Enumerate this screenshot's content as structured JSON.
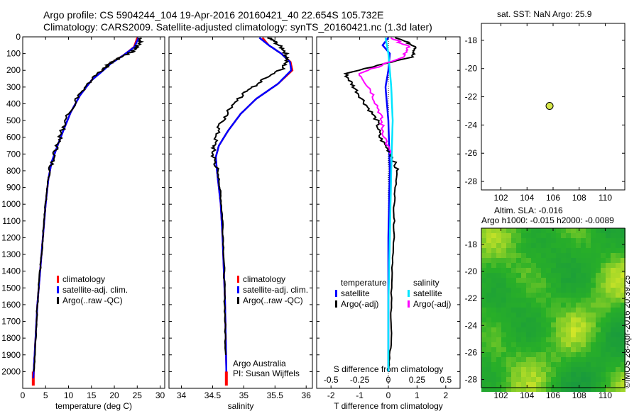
{
  "header": {
    "title_line1": "Argo profile: CS 5904244_104 19-Apr-2016 20160421_40 22.654S 105.732E",
    "title_line2": "Climatology: CARS2009. Satellite-adjusted climatology: synTS_20160421.nc (1.3d later)"
  },
  "colors": {
    "climatology": "#ff0000",
    "satellite_adj": "#0000ff",
    "argo": "#000000",
    "salinity_satellite": "#00e5ff",
    "salinity_argo": "#ff00ff",
    "sst_dot": "#d8e84a"
  },
  "chart_data": [
    {
      "type": "line",
      "name": "temperature-profile",
      "xlabel": "temperature (deg C)",
      "ylabel": "",
      "xlim": [
        0,
        31
      ],
      "ylim": [
        2100,
        0
      ],
      "xticks": [
        0,
        5,
        10,
        15,
        20,
        25,
        30
      ],
      "yticks": [
        0,
        100,
        200,
        300,
        400,
        500,
        600,
        700,
        800,
        900,
        1000,
        1100,
        1200,
        1300,
        1400,
        1500,
        1600,
        1700,
        1800,
        1900,
        2000
      ],
      "legend": [
        "climatology",
        "satellite-adj. clim.",
        "Argo(..raw -QC)"
      ],
      "legend_position": "lower-center",
      "series": [
        {
          "name": "climatology",
          "points": [
            [
              25.0,
              5
            ],
            [
              24.3,
              60
            ],
            [
              22.0,
              110
            ],
            [
              19.0,
              160
            ],
            [
              17.5,
              200
            ],
            [
              15.0,
              260
            ],
            [
              12.5,
              350
            ],
            [
              10.5,
              450
            ],
            [
              9.0,
              550
            ],
            [
              7.6,
              650
            ],
            [
              6.3,
              750
            ],
            [
              5.6,
              850
            ],
            [
              5.0,
              1000
            ],
            [
              4.4,
              1200
            ],
            [
              3.8,
              1400
            ],
            [
              3.2,
              1600
            ],
            [
              2.8,
              1800
            ],
            [
              2.4,
              2000
            ],
            [
              2.3,
              2050
            ]
          ]
        },
        {
          "name": "satellite-adj. clim.",
          "points": [
            [
              25.3,
              5
            ],
            [
              24.4,
              60
            ],
            [
              22.0,
              110
            ],
            [
              19.2,
              160
            ],
            [
              17.6,
              200
            ],
            [
              15.0,
              260
            ],
            [
              12.5,
              350
            ],
            [
              10.5,
              450
            ],
            [
              9.0,
              550
            ],
            [
              7.6,
              650
            ],
            [
              6.3,
              750
            ],
            [
              5.6,
              850
            ],
            [
              5.0,
              1000
            ],
            [
              4.4,
              1200
            ],
            [
              3.8,
              1400
            ],
            [
              3.2,
              1600
            ],
            [
              2.8,
              1800
            ],
            [
              2.4,
              2000
            ],
            [
              2.3,
              2040
            ]
          ]
        },
        {
          "name": "Argo(..raw -QC)",
          "points": [
            [
              25.8,
              5
            ],
            [
              25.5,
              40
            ],
            [
              24.5,
              80
            ],
            [
              21.5,
              120
            ],
            [
              19.0,
              160
            ],
            [
              17.3,
              200
            ],
            [
              14.5,
              270
            ],
            [
              12.0,
              360
            ],
            [
              10.0,
              460
            ],
            [
              8.6,
              560
            ],
            [
              7.5,
              650
            ],
            [
              6.4,
              750
            ],
            [
              5.6,
              850
            ],
            [
              5.0,
              1000
            ],
            [
              4.4,
              1200
            ],
            [
              3.8,
              1400
            ],
            [
              3.2,
              1600
            ],
            [
              2.8,
              1800
            ],
            [
              2.4,
              2000
            ]
          ]
        }
      ]
    },
    {
      "type": "line",
      "name": "salinity-profile",
      "xlabel": "salinity",
      "ylabel": "",
      "xlim": [
        33.8,
        36.1
      ],
      "ylim": [
        2100,
        0
      ],
      "xticks": [
        34,
        34.5,
        35,
        35.5,
        36
      ],
      "legend": [
        "climatology",
        "satellite-adj. clim.",
        "Argo(..raw -QC)"
      ],
      "legend_position": "lower-center",
      "annotation": [
        "Argo Australia",
        "PI: Susan Wijffels"
      ],
      "series": [
        {
          "name": "climatology",
          "points": [
            [
              35.3,
              5
            ],
            [
              35.4,
              50
            ],
            [
              35.6,
              100
            ],
            [
              35.75,
              150
            ],
            [
              35.78,
              200
            ],
            [
              35.55,
              280
            ],
            [
              35.2,
              370
            ],
            [
              34.95,
              460
            ],
            [
              34.75,
              560
            ],
            [
              34.6,
              650
            ],
            [
              34.55,
              720
            ],
            [
              34.57,
              800
            ],
            [
              34.6,
              900
            ],
            [
              34.63,
              1000
            ],
            [
              34.66,
              1200
            ],
            [
              34.68,
              1400
            ],
            [
              34.7,
              1600
            ],
            [
              34.71,
              1800
            ],
            [
              34.72,
              2000
            ],
            [
              34.72,
              2050
            ]
          ]
        },
        {
          "name": "satellite-adj. clim.",
          "points": [
            [
              35.25,
              5
            ],
            [
              35.4,
              50
            ],
            [
              35.6,
              100
            ],
            [
              35.74,
              150
            ],
            [
              35.76,
              200
            ],
            [
              35.55,
              280
            ],
            [
              35.2,
              370
            ],
            [
              34.95,
              460
            ],
            [
              34.75,
              560
            ],
            [
              34.6,
              650
            ],
            [
              34.55,
              720
            ],
            [
              34.57,
              800
            ],
            [
              34.6,
              900
            ],
            [
              34.63,
              1000
            ],
            [
              34.66,
              1200
            ],
            [
              34.68,
              1400
            ],
            [
              34.7,
              1600
            ],
            [
              34.71,
              1800
            ],
            [
              34.72,
              2000
            ]
          ]
        },
        {
          "name": "Argo(..raw -QC)",
          "points": [
            [
              35.4,
              5
            ],
            [
              35.5,
              30
            ],
            [
              35.65,
              80
            ],
            [
              35.7,
              130
            ],
            [
              35.62,
              190
            ],
            [
              35.3,
              260
            ],
            [
              35.0,
              340
            ],
            [
              34.75,
              440
            ],
            [
              34.6,
              540
            ],
            [
              34.53,
              640
            ],
            [
              34.5,
              700
            ],
            [
              34.55,
              760
            ],
            [
              34.6,
              850
            ],
            [
              34.63,
              950
            ],
            [
              34.66,
              1100
            ],
            [
              34.68,
              1300
            ],
            [
              34.69,
              1500
            ],
            [
              34.7,
              1700
            ],
            [
              34.71,
              1900
            ]
          ]
        }
      ]
    },
    {
      "type": "line",
      "name": "difference-from-climatology",
      "xlabel": "T difference from climatology",
      "xlabel2": "S difference from climatology",
      "xlim": [
        -2.5,
        2.5
      ],
      "ylim": [
        2100,
        0
      ],
      "xticks": [
        -2,
        -1,
        0,
        1,
        2
      ],
      "x2ticks": [
        "-0.5",
        "-0.25",
        "0",
        "0.25",
        "0.5"
      ],
      "legend_groups": [
        "temperature",
        "salinity"
      ],
      "legend": [
        "satellite",
        "Argo(-adj)",
        "satellite",
        "Argo(-adj)"
      ],
      "legend_position": "lower-center",
      "series": [
        {
          "name": "satellite",
          "group": "temperature",
          "points": [
            [
              0.0,
              5
            ],
            [
              -0.2,
              50
            ],
            [
              0.05,
              100
            ],
            [
              0.0,
              200
            ],
            [
              -0.1,
              300
            ],
            [
              0.0,
              500
            ],
            [
              0.05,
              800
            ],
            [
              0.0,
              1200
            ],
            [
              0.0,
              2000
            ]
          ]
        },
        {
          "name": "Argo(-adj)",
          "group": "temperature",
          "points": [
            [
              0.3,
              5
            ],
            [
              1.0,
              60
            ],
            [
              0.8,
              120
            ],
            [
              -1.5,
              220
            ],
            [
              -1.2,
              300
            ],
            [
              -0.8,
              400
            ],
            [
              -0.4,
              500
            ],
            [
              -0.3,
              600
            ],
            [
              0.1,
              700
            ],
            [
              0.3,
              800
            ],
            [
              0.2,
              1000
            ],
            [
              0.2,
              1200
            ],
            [
              0.1,
              1500
            ],
            [
              0.1,
              1800
            ],
            [
              0.0,
              2000
            ]
          ]
        },
        {
          "name": "satellite",
          "group": "salinity",
          "points": [
            [
              -0.1,
              5
            ],
            [
              0.0,
              100
            ],
            [
              0.1,
              300
            ],
            [
              0.15,
              500
            ],
            [
              0.1,
              800
            ],
            [
              0.05,
              1200
            ],
            [
              0.0,
              1600
            ],
            [
              0.0,
              2000
            ]
          ]
        },
        {
          "name": "Argo(-adj)",
          "group": "salinity",
          "points": [
            [
              0.1,
              5
            ],
            [
              0.7,
              60
            ],
            [
              0.5,
              120
            ],
            [
              -1.0,
              220
            ],
            [
              -0.6,
              320
            ],
            [
              -0.3,
              450
            ],
            [
              -0.2,
              550
            ],
            [
              0.05,
              700
            ]
          ]
        }
      ]
    },
    {
      "type": "scatter",
      "name": "sst-location-map",
      "title": "sat. SST: NaN Argo: 25.9",
      "xlim": [
        100.5,
        111.5
      ],
      "ylim": [
        -28.6,
        -16.8
      ],
      "xticks": [
        102,
        104,
        106,
        108,
        110
      ],
      "yticks": [
        -18,
        -20,
        -22,
        -24,
        -26,
        -28
      ],
      "points": [
        [
          105.73,
          -22.65
        ]
      ]
    },
    {
      "type": "heatmap",
      "name": "sla-map",
      "title": "Altim. SLA: -0.016",
      "subtitle": "Argo h1000: -0.015 h2000: -0.0089",
      "xlim": [
        100.5,
        111.5
      ],
      "ylim": [
        -28.6,
        -16.8
      ],
      "xticks": [
        102,
        104,
        106,
        108,
        110
      ],
      "yticks": [
        -18,
        -20,
        -22,
        -24,
        -26,
        -28
      ]
    }
  ],
  "footer": {
    "stamp": "©IMOS 28-Apr-2016 20:39:25"
  }
}
